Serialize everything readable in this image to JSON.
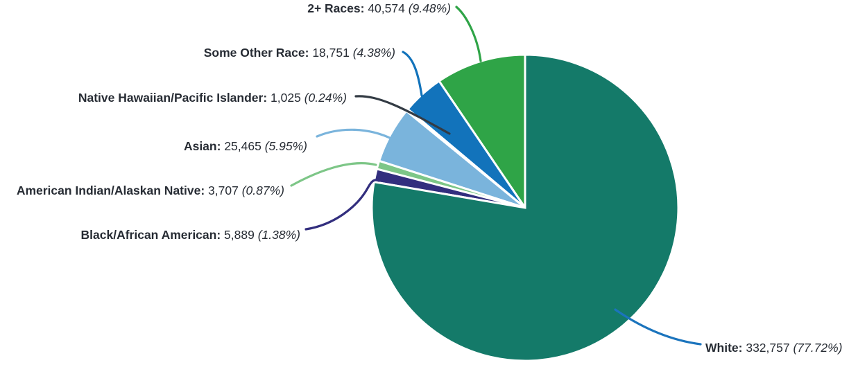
{
  "chart_data": {
    "type": "pie",
    "legend_position": "callout-labels",
    "text_color": "#272c34",
    "slice_gap_color": "#ffffff",
    "layout_hints": {
      "start_angle": "12-o-clock",
      "label_order_direction": "counter-clockwise",
      "largest_slice": "right-and-bottom"
    },
    "categories": [
      "2+ Races",
      "Some Other Race",
      "Native Hawaiian/Pacific Islander",
      "Asian",
      "American Indian/Alaskan Native",
      "Black/African American",
      "White"
    ],
    "values": [
      40574,
      18751,
      1025,
      25465,
      3707,
      5889,
      332757
    ],
    "percentages": [
      9.48,
      4.38,
      0.24,
      5.95,
      0.87,
      1.38,
      77.72
    ],
    "slices": [
      {
        "id": "two-plus-races",
        "label": "2+ Races",
        "label_display": "2+ Races:",
        "value": 40574,
        "value_display": "40,574",
        "pct": 9.48,
        "pct_display": "(9.48%)",
        "color": "#2fa447",
        "line_color": "#2fa447"
      },
      {
        "id": "some-other-race",
        "label": "Some Other Race",
        "label_display": "Some Other Race:",
        "value": 18751,
        "value_display": "18,751",
        "pct": 4.38,
        "pct_display": "(4.38%)",
        "color": "#1273bb",
        "line_color": "#1273bb"
      },
      {
        "id": "native-hawaiian-pacific-islander",
        "label": "Native Hawaiian/Pacific Islander",
        "label_display": "Native Hawaiian/Pacific Islander:",
        "value": 1025,
        "value_display": "1,025",
        "pct": 0.24,
        "pct_display": "(0.24%)",
        "color": "#333b44",
        "line_color": "#333b44"
      },
      {
        "id": "asian",
        "label": "Asian",
        "label_display": "Asian:",
        "value": 25465,
        "value_display": "25,465",
        "pct": 5.95,
        "pct_display": "(5.95%)",
        "color": "#7ab4dc",
        "line_color": "#7ab4dc"
      },
      {
        "id": "american-indian-alaskan-native",
        "label": "American Indian/Alaskan Native",
        "label_display": "American Indian/Alaskan Native:",
        "value": 3707,
        "value_display": "3,707",
        "pct": 0.87,
        "pct_display": "(0.87%)",
        "color": "#7dc687",
        "line_color": "#7dc687"
      },
      {
        "id": "black-african-american",
        "label": "Black/African American",
        "label_display": "Black/African American:",
        "value": 5889,
        "value_display": "5,889",
        "pct": 1.38,
        "pct_display": "(1.38%)",
        "color": "#322e7e",
        "line_color": "#322e7e"
      },
      {
        "id": "white",
        "label": "White",
        "label_display": "White:",
        "value": 332757,
        "value_display": "332,757",
        "pct": 77.72,
        "pct_display": "(77.72%)",
        "color": "#147a69",
        "line_color": "#1b74bd"
      }
    ]
  }
}
